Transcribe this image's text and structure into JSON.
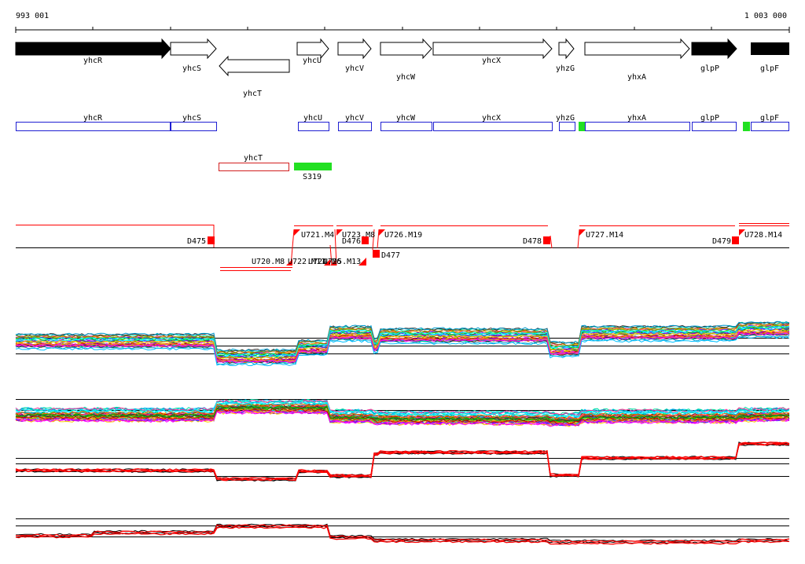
{
  "ruler": {
    "start_label": "993 001",
    "end_label": "1 003 000"
  },
  "genes": [
    {
      "name": "yhcR",
      "strand": "+",
      "filled": true
    },
    {
      "name": "yhcS",
      "strand": "+",
      "filled": false
    },
    {
      "name": "yhcT",
      "strand": "-",
      "filled": false
    },
    {
      "name": "yhcU",
      "strand": "+",
      "filled": false
    },
    {
      "name": "yhcV",
      "strand": "+",
      "filled": false
    },
    {
      "name": "yhcW",
      "strand": "+",
      "filled": false
    },
    {
      "name": "yhcX",
      "strand": "+",
      "filled": false
    },
    {
      "name": "yhzG",
      "strand": "+",
      "filled": false
    },
    {
      "name": "yhxA",
      "strand": "+",
      "filled": false
    },
    {
      "name": "glpP",
      "strand": "+",
      "filled": true
    },
    {
      "name": "glpF",
      "strand": "+",
      "filled": true
    }
  ],
  "annotation_boxes_upper": [
    "yhcR",
    "yhcS",
    "yhcU",
    "yhcV",
    "yhcW",
    "yhcX",
    "yhzG",
    "yhxA",
    "glpP",
    "glpF"
  ],
  "annotation_boxes_lower": [
    "yhcT"
  ],
  "segment_label": "S319",
  "transcription_units": [
    "D475",
    "U721.M4",
    "U723.M8",
    "D476",
    "U726.M19",
    "D478",
    "U727.M14",
    "D479",
    "U728.M14",
    "U720.M8",
    "U722.M11",
    "U724.M6",
    "U725.M13",
    "D477"
  ],
  "colors": {
    "forward_box": "#1f1fd2",
    "reverse_box": "#d21f1f",
    "segment": "#22e022",
    "marker": "#ff0000",
    "black": "#000000"
  },
  "tracks": [
    "expression-track-1",
    "expression-track-2",
    "profile-track-1",
    "profile-track-2"
  ]
}
